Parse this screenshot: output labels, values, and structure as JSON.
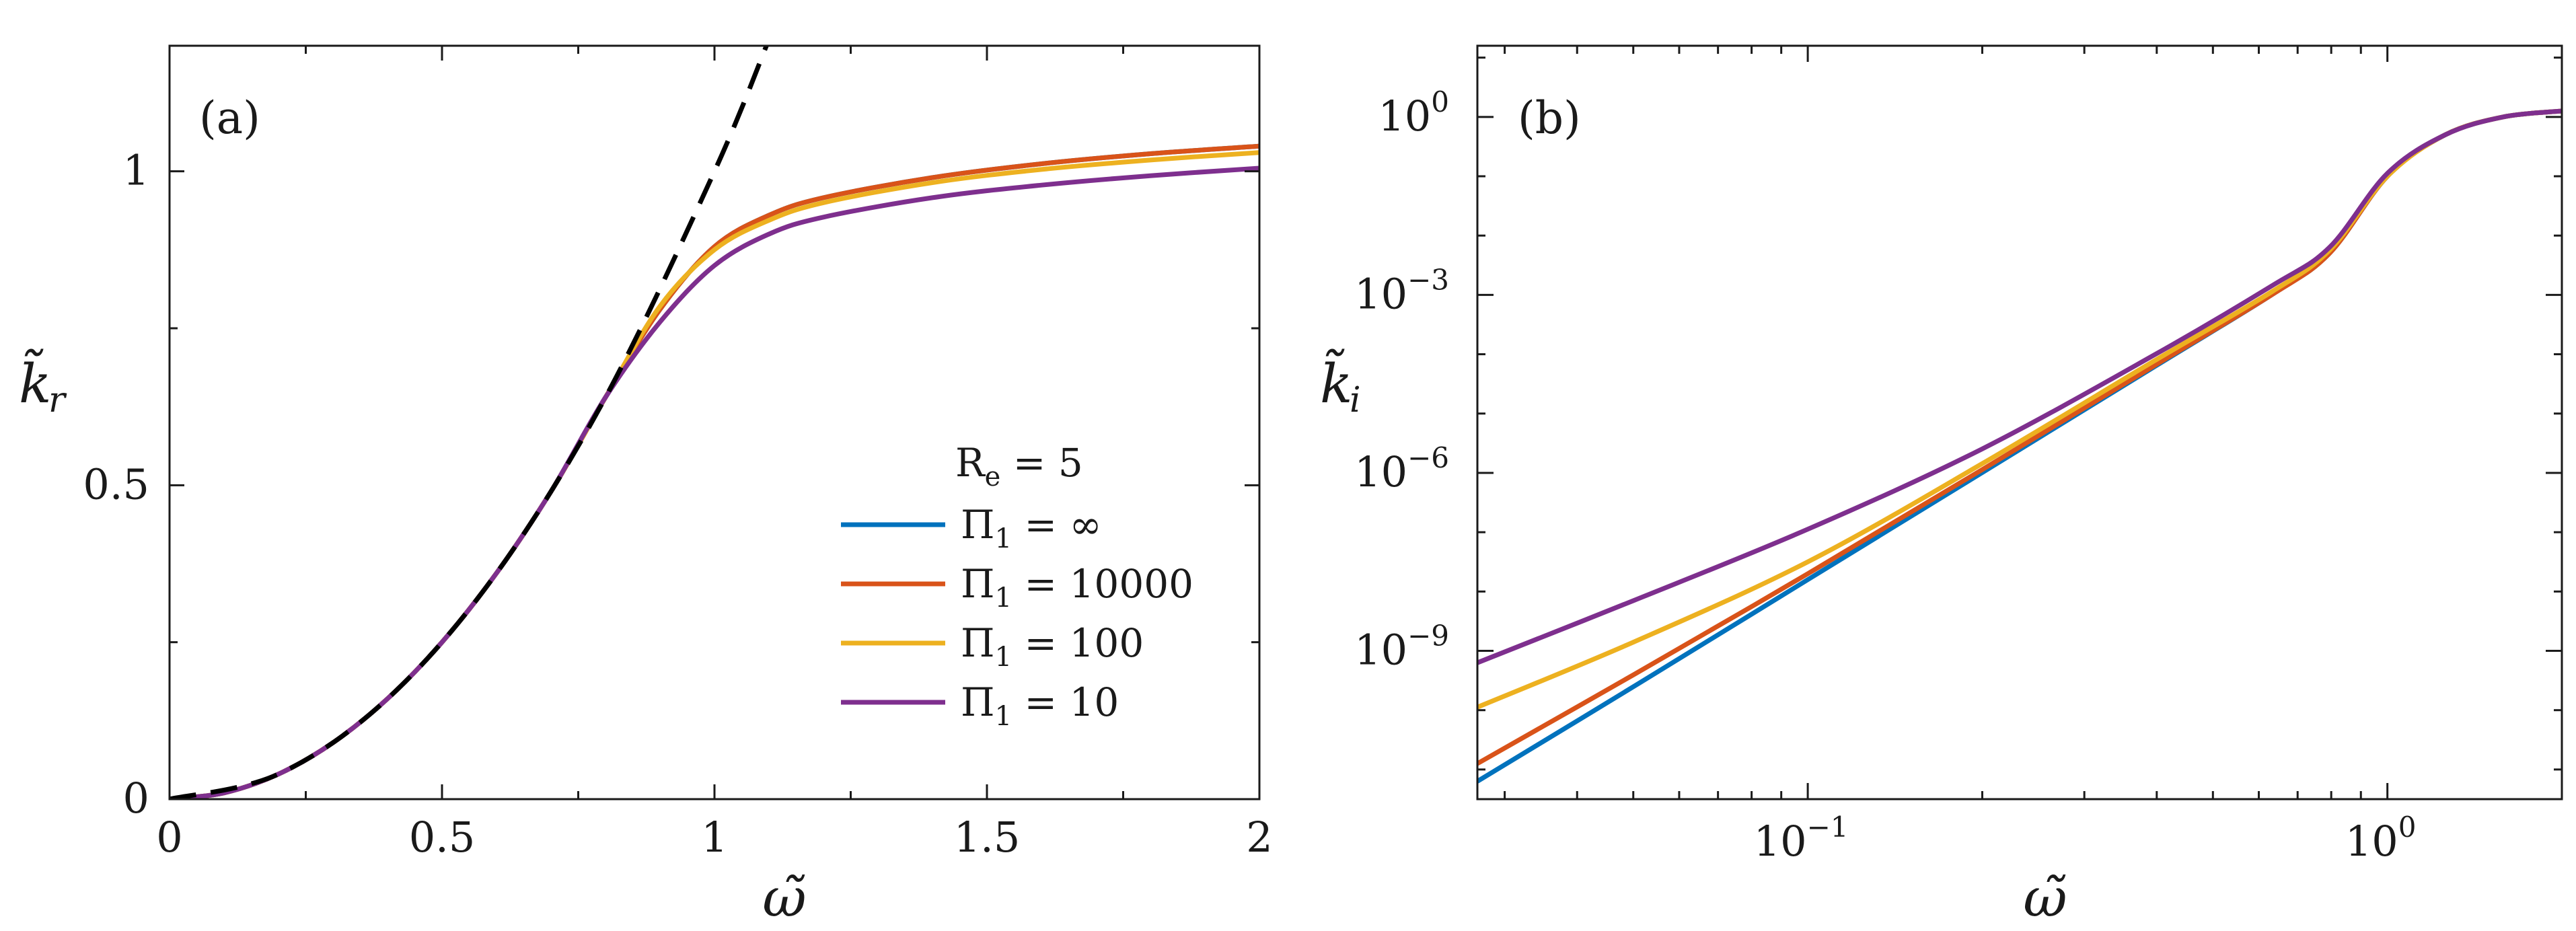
{
  "chart_data": [
    {
      "panel": "a",
      "type": "line",
      "panel_label": "(a)",
      "xlabel": "ω̃",
      "ylabel": "k̃",
      "ylabel_sub": "r",
      "xlim": [
        0,
        2
      ],
      "ylim": [
        0,
        1.2
      ],
      "xticks": [
        0,
        0.5,
        1,
        1.5,
        2
      ],
      "xtick_labels": [
        "0",
        "0.5",
        "1",
        "1.5",
        "2"
      ],
      "yticks": [
        0,
        0.5,
        1
      ],
      "ytick_labels": [
        "0",
        "0.5",
        "1"
      ],
      "x": [
        0,
        0.1,
        0.2,
        0.3,
        0.4,
        0.5,
        0.6,
        0.7,
        0.8,
        0.9,
        1.0,
        1.1,
        1.2,
        1.4,
        1.6,
        1.8,
        2.0
      ],
      "series": [
        {
          "name": "Π₁ = ∞",
          "color": "#0072BD",
          "dashed": false,
          "values": [
            0,
            0.01,
            0.04,
            0.09,
            0.16,
            0.25,
            0.36,
            0.49,
            0.64,
            0.78,
            0.88,
            0.93,
            0.958,
            0.99,
            1.012,
            1.028,
            1.04
          ]
        },
        {
          "name": "Π₁ = 10000",
          "color": "#D95319",
          "dashed": false,
          "values": [
            0,
            0.01,
            0.04,
            0.09,
            0.16,
            0.25,
            0.36,
            0.49,
            0.64,
            0.78,
            0.88,
            0.93,
            0.958,
            0.99,
            1.012,
            1.028,
            1.04
          ]
        },
        {
          "name": "Π₁ = 100",
          "color": "#EDB120",
          "dashed": false,
          "values": [
            0,
            0.01,
            0.04,
            0.09,
            0.16,
            0.25,
            0.36,
            0.49,
            0.64,
            0.785,
            0.875,
            0.922,
            0.95,
            0.982,
            1.003,
            1.018,
            1.03
          ]
        },
        {
          "name": "Π₁ = 10",
          "color": "#7E2F8E",
          "dashed": false,
          "values": [
            0,
            0.01,
            0.04,
            0.09,
            0.16,
            0.25,
            0.36,
            0.49,
            0.64,
            0.76,
            0.85,
            0.9,
            0.927,
            0.958,
            0.978,
            0.993,
            1.005
          ]
        },
        {
          "name": "asymptote",
          "color": "#000000",
          "dashed": true,
          "x": [
            0,
            0.2,
            0.4,
            0.6,
            0.8,
            1.0,
            1.1
          ],
          "values": [
            0,
            0.04,
            0.16,
            0.36,
            0.64,
            1.0,
            1.21
          ]
        }
      ],
      "legend": {
        "title": "R",
        "title_sub": "e",
        "title_rest": " = 5",
        "position": "lower-right",
        "entries": [
          {
            "label": "Π",
            "sub": "1",
            "rest": " = ∞",
            "color": "#0072BD"
          },
          {
            "label": "Π",
            "sub": "1",
            "rest": " = 10000",
            "color": "#D95319"
          },
          {
            "label": "Π",
            "sub": "1",
            "rest": " = 100",
            "color": "#EDB120"
          },
          {
            "label": "Π",
            "sub": "1",
            "rest": " = 10",
            "color": "#7E2F8E"
          }
        ]
      }
    },
    {
      "panel": "b",
      "type": "line",
      "panel_label": "(b)",
      "xlabel": "ω̃",
      "ylabel": "k̃",
      "ylabel_sub": "i",
      "xscale": "log",
      "yscale": "log",
      "xlim_log10": [
        -1.57,
        0.301
      ],
      "ylim_log10": [
        -11.5,
        1.2
      ],
      "xticks_log10": [
        -1,
        0
      ],
      "xtick_labels": [
        {
          "base": "10",
          "exp": "−1"
        },
        {
          "base": "10",
          "exp": "0"
        }
      ],
      "yticks_log10": [
        -9,
        -6,
        -3,
        0
      ],
      "ytick_labels": [
        {
          "base": "10",
          "exp": "−9"
        },
        {
          "base": "10",
          "exp": "−6"
        },
        {
          "base": "10",
          "exp": "−3"
        },
        {
          "base": "10",
          "exp": "0"
        }
      ],
      "x_log10": [
        -1.57,
        -1.3,
        -1.0,
        -0.7,
        -0.4,
        -0.2,
        -0.1,
        0.0,
        0.1,
        0.2,
        0.301
      ],
      "series": [
        {
          "name": "Π₁ = ∞",
          "color": "#0072BD",
          "values_log10": [
            -11.2,
            -9.6,
            -7.8,
            -6.0,
            -4.2,
            -3.0,
            -2.3,
            -1.0,
            -0.3,
            0.0,
            0.1
          ]
        },
        {
          "name": "Π₁ = 10000",
          "color": "#D95319",
          "values_log10": [
            -10.9,
            -9.4,
            -7.7,
            -5.95,
            -4.18,
            -3.0,
            -2.3,
            -1.0,
            -0.3,
            0.0,
            0.1
          ]
        },
        {
          "name": "Π₁ = 100",
          "color": "#EDB120",
          "values_log10": [
            -9.95,
            -8.85,
            -7.5,
            -5.85,
            -4.1,
            -2.95,
            -2.25,
            -1.0,
            -0.3,
            0.0,
            0.1
          ]
        },
        {
          "name": "Π₁ = 10",
          "color": "#7E2F8E",
          "values_log10": [
            -9.2,
            -8.15,
            -6.95,
            -5.6,
            -4.0,
            -2.85,
            -2.2,
            -0.95,
            -0.3,
            0.0,
            0.1
          ]
        }
      ]
    }
  ]
}
